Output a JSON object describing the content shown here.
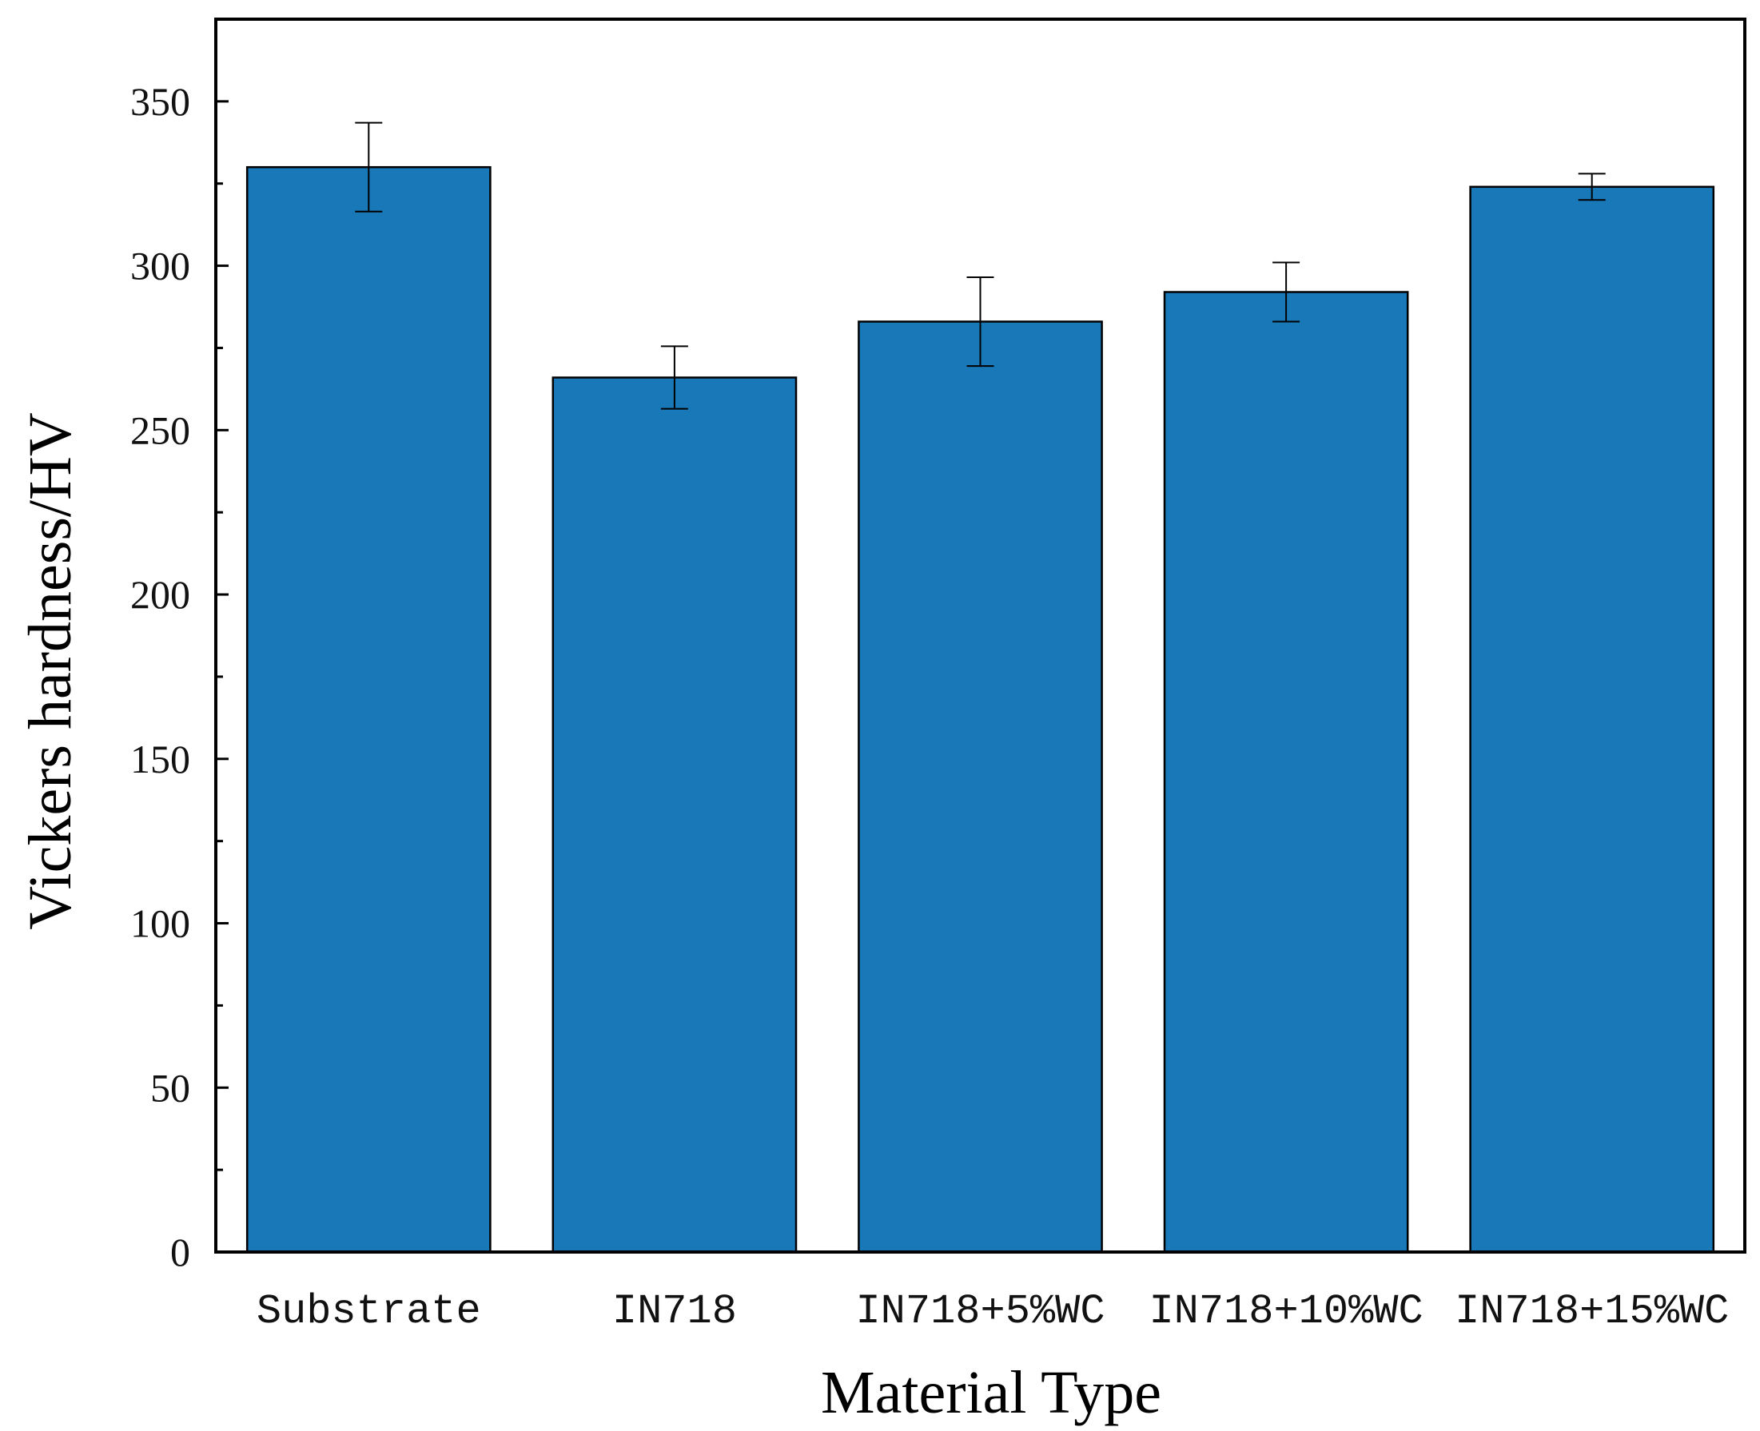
{
  "chart_data": {
    "type": "bar",
    "title": "",
    "xlabel": "Material Type",
    "ylabel": "Vickers hardness/HV",
    "categories": [
      "Substrate",
      "IN718",
      "IN718+5%WC",
      "IN718+10%WC",
      "IN718+15%WC"
    ],
    "values": [
      330,
      266,
      283,
      292,
      324
    ],
    "errors": [
      13.5,
      9.5,
      13.5,
      9,
      4
    ],
    "ylim": [
      0,
      375
    ],
    "yticks": [
      0,
      50,
      100,
      150,
      200,
      250,
      300,
      350
    ],
    "ytick_labels": [
      "0",
      "50",
      "100",
      "150",
      "200",
      "250",
      "300",
      "350"
    ],
    "bar_color": "#1878b8",
    "grid": false,
    "legend": "none"
  }
}
